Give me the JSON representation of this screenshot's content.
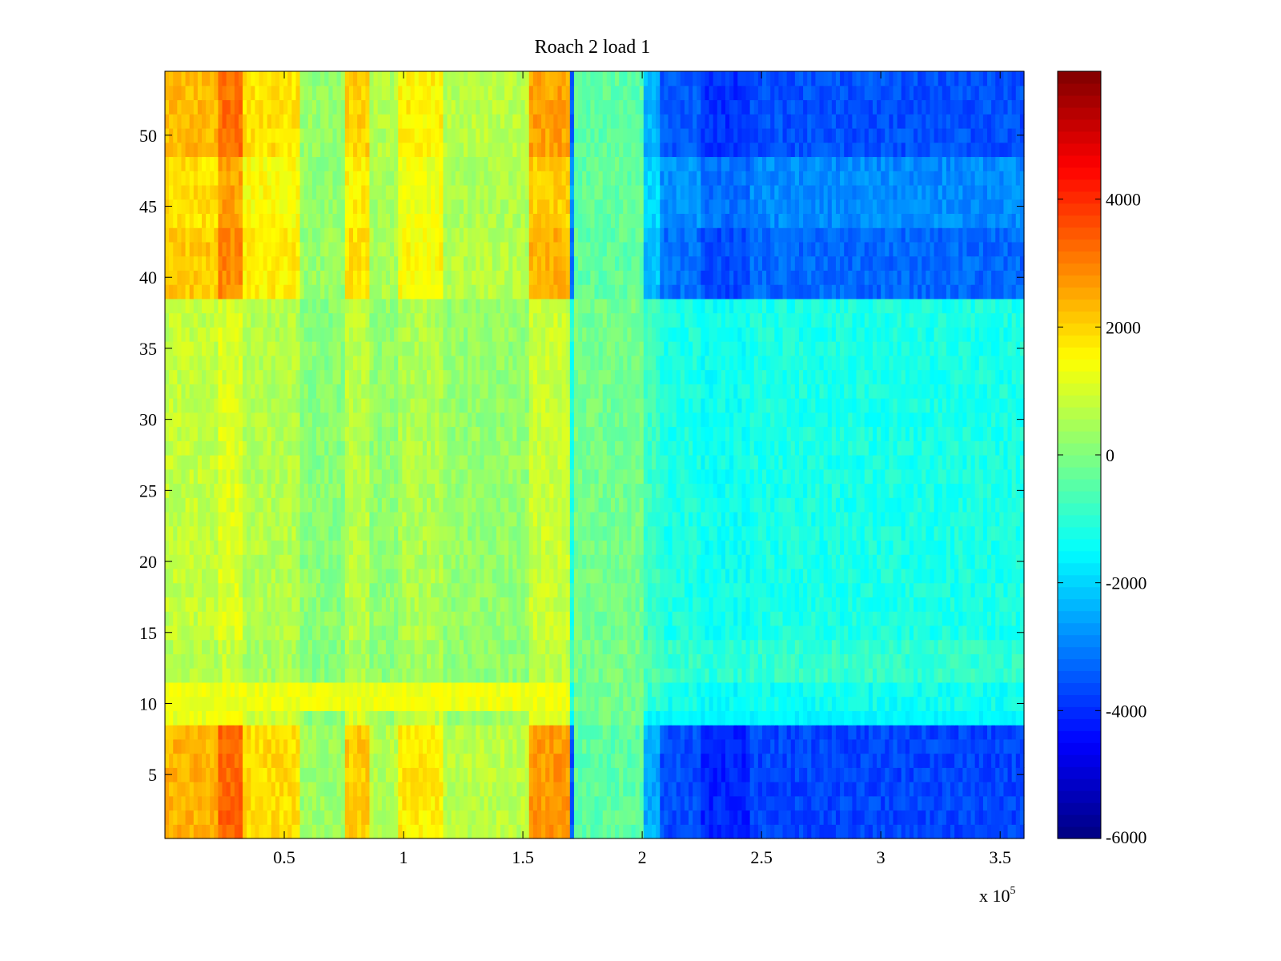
{
  "chart_data": {
    "type": "heatmap",
    "title": "Roach 2 load 1",
    "xlabel": "",
    "ylabel": "",
    "x_exponent_label": "x 10",
    "x_exponent": "5",
    "x_range": [
      0,
      360000
    ],
    "y_range": [
      0.5,
      54.5
    ],
    "x_ticks": [
      {
        "value": 50000,
        "label": "0.5"
      },
      {
        "value": 100000,
        "label": "1"
      },
      {
        "value": 150000,
        "label": "1.5"
      },
      {
        "value": 200000,
        "label": "2"
      },
      {
        "value": 250000,
        "label": "2.5"
      },
      {
        "value": 300000,
        "label": "3"
      },
      {
        "value": 350000,
        "label": "3.5"
      }
    ],
    "y_ticks": [
      {
        "value": 5,
        "label": "5"
      },
      {
        "value": 10,
        "label": "10"
      },
      {
        "value": 15,
        "label": "15"
      },
      {
        "value": 20,
        "label": "20"
      },
      {
        "value": 25,
        "label": "25"
      },
      {
        "value": 30,
        "label": "30"
      },
      {
        "value": 35,
        "label": "35"
      },
      {
        "value": 40,
        "label": "40"
      },
      {
        "value": 45,
        "label": "45"
      },
      {
        "value": 50,
        "label": "50"
      }
    ],
    "colorbar": {
      "colormap": "jet",
      "range": [
        -6000,
        6000
      ],
      "ticks": [
        {
          "value": 4000,
          "label": "4000"
        },
        {
          "value": 2000,
          "label": "2000"
        },
        {
          "value": 0,
          "label": "0"
        },
        {
          "value": -2000,
          "label": "-2000"
        },
        {
          "value": -4000,
          "label": "-4000"
        },
        {
          "value": -6000,
          "label": "-6000"
        }
      ]
    },
    "column_segments": [
      {
        "x_start": 0,
        "x_end": 22000,
        "base": 2400
      },
      {
        "x_start": 22000,
        "x_end": 32000,
        "base": 3300
      },
      {
        "x_start": 32000,
        "x_end": 57000,
        "base": 1900
      },
      {
        "x_start": 57000,
        "x_end": 75000,
        "base": 300
      },
      {
        "x_start": 75000,
        "x_end": 85000,
        "base": 2100
      },
      {
        "x_start": 85000,
        "x_end": 97000,
        "base": 600
      },
      {
        "x_start": 97000,
        "x_end": 117000,
        "base": 1700
      },
      {
        "x_start": 117000,
        "x_end": 153000,
        "base": 700
      },
      {
        "x_start": 153000,
        "x_end": 170000,
        "base": 2700
      },
      {
        "x_start": 170000,
        "x_end": 171000,
        "base": -3500
      },
      {
        "x_start": 171000,
        "x_end": 200000,
        "base": -400
      },
      {
        "x_start": 200000,
        "x_end": 208000,
        "base": -2500
      },
      {
        "x_start": 208000,
        "x_end": 225000,
        "base": -3600
      },
      {
        "x_start": 225000,
        "x_end": 245000,
        "base": -4100
      },
      {
        "x_start": 245000,
        "x_end": 360000,
        "base": -3700
      }
    ],
    "row_bands": [
      {
        "y_start": 0.5,
        "y_end": 8.5,
        "intensity": 1.0
      },
      {
        "y_start": 8.5,
        "y_end": 9.5,
        "intensity": 0.3
      },
      {
        "y_start": 9.5,
        "y_end": 11.5,
        "intensity": 0.15
      },
      {
        "y_start": 11.5,
        "y_end": 14.5,
        "intensity": 0.0
      },
      {
        "y_start": 14.5,
        "y_end": 38.5,
        "intensity": 0.1
      },
      {
        "y_start": 38.5,
        "y_end": 43.5,
        "intensity": 0.85
      },
      {
        "y_start": 43.5,
        "y_end": 48.5,
        "intensity": 0.7
      },
      {
        "y_start": 48.5,
        "y_end": 54.5,
        "intensity": 0.95
      }
    ]
  }
}
